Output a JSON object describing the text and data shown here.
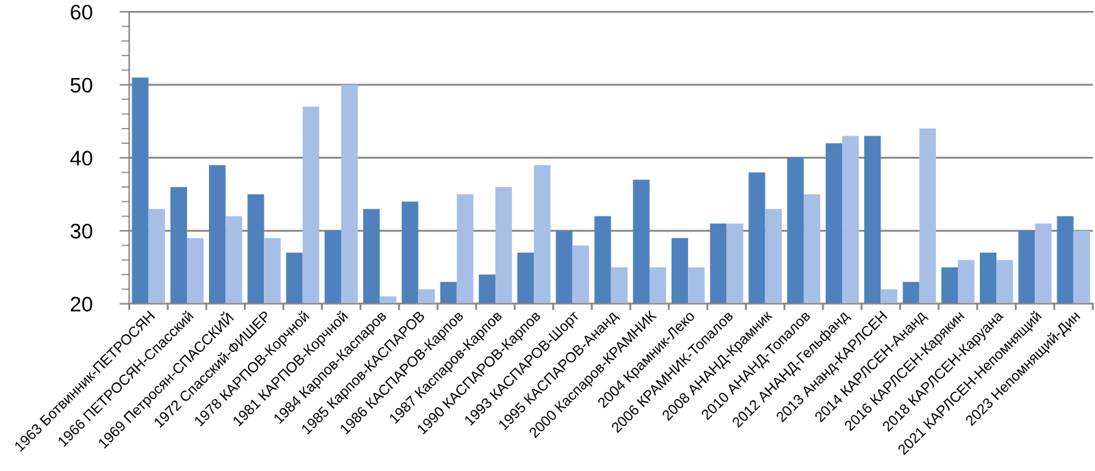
{
  "chart_data": {
    "type": "bar",
    "categories": [
      "1963 Ботвинник-ПЕТРОСЯН",
      "1966 ПЕТРОСЯН-Спасский",
      "1969 Петросян-СПАССКИЙ",
      "1972 Спасский-ФИШЕР",
      "1978 КАРПОВ-Корчной",
      "1981 КАРПОВ-Корчной",
      "1984 Карпов-Каспаров",
      "1985 Карпов-КАСПАРОВ",
      "1986 КАСПАРОВ-Карпов",
      "1987 Каспаров-Карпов",
      "1990 КАСПАРОВ-Карпов",
      "1993 КАСПАРОВ-Шорт",
      "1995 КАСПАРОВ-Ананд",
      "2000 Каспаров-КРАМНИК",
      "2004 Крамник-Леко",
      "2006 КРАМНИК-Топалов",
      "2008 АНАНД-Крамник",
      "2010 АНАНД-Топалов",
      "2012 АНАНД-Гельфанд",
      "2013 Ананд-КАРЛСЕН",
      "2014 КАРЛСЕН-Ананд",
      "2016 КАРЛСЕН-Карякин",
      "2018 КАРЛСЕН-Каруана",
      "2021 КАРЛСЕН-Непомнящий",
      "2023 Непомнящий-Дин"
    ],
    "series": [
      {
        "color": "#4f81bd",
        "values": [
          51,
          36,
          39,
          35,
          27,
          30,
          33,
          34,
          23,
          24,
          27,
          30,
          32,
          37,
          29,
          31,
          38,
          40,
          42,
          43,
          23,
          25,
          27,
          30,
          32
        ]
      },
      {
        "color": "#a7bfe6",
        "values": [
          33,
          29,
          32,
          29,
          47,
          50,
          21,
          22,
          35,
          36,
          39,
          28,
          25,
          25,
          25,
          31,
          33,
          35,
          43,
          22,
          44,
          26,
          26,
          31,
          30
        ]
      }
    ],
    "ylim": [
      20,
      60
    ],
    "yticks": [
      20,
      30,
      40,
      50,
      60
    ],
    "grid": "y"
  }
}
